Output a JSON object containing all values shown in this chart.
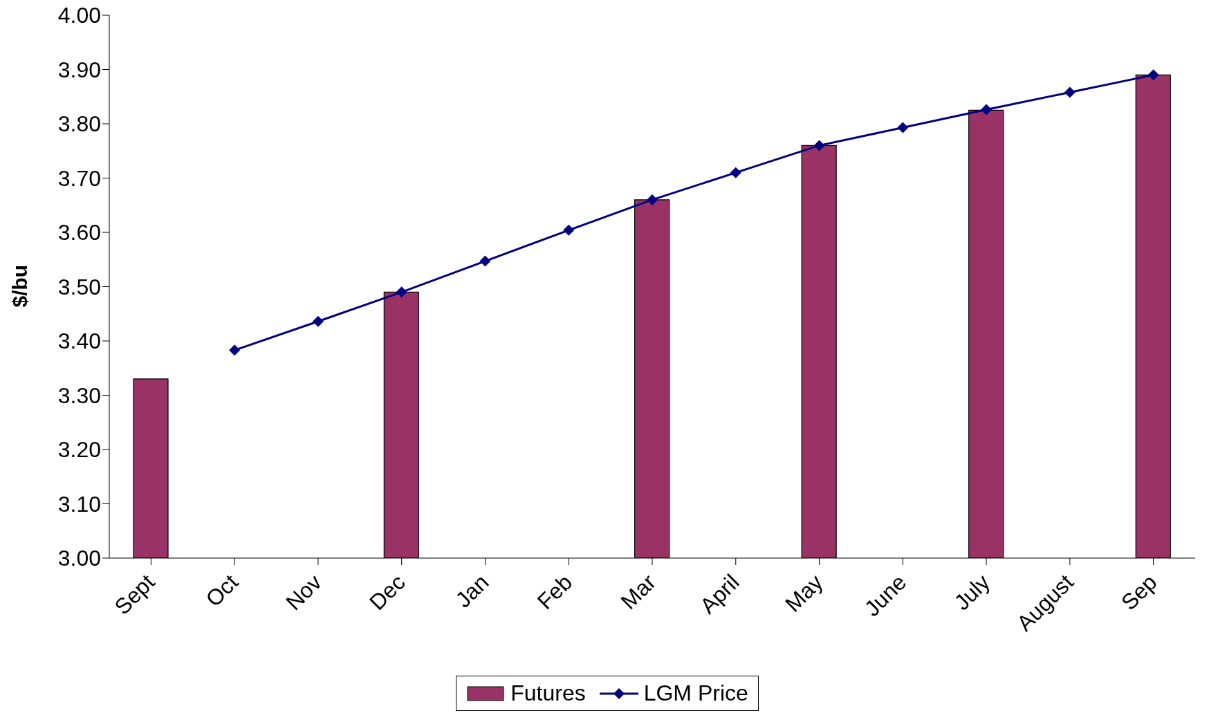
{
  "chart_data": {
    "type": "bar",
    "ylabel": "$/bu",
    "categories": [
      "Sept",
      "Oct",
      "Nov",
      "Dec",
      "Jan",
      "Feb",
      "Mar",
      "April",
      "May",
      "June",
      "July",
      "August",
      "Sep"
    ],
    "series": [
      {
        "name": "Futures",
        "color": "#993366",
        "values": [
          3.33,
          null,
          null,
          3.49,
          null,
          null,
          3.66,
          null,
          3.76,
          null,
          3.825,
          null,
          3.89
        ]
      },
      {
        "name": "LGM Price",
        "type": "line",
        "color": "#000080",
        "marker": "diamond",
        "values": [
          null,
          3.383,
          3.436,
          3.49,
          3.547,
          3.604,
          3.66,
          3.71,
          3.76,
          3.793,
          3.826,
          3.858,
          3.89
        ]
      }
    ],
    "ylim": [
      3,
      4
    ],
    "yticks": [
      {
        "value": 3,
        "label": "3.00"
      },
      {
        "value": 3.1,
        "label": "3.10"
      },
      {
        "value": 3.2,
        "label": "3.20"
      },
      {
        "value": 3.3,
        "label": "3.30"
      },
      {
        "value": 3.4,
        "label": "3.40"
      },
      {
        "value": 3.5,
        "label": "3.50"
      },
      {
        "value": 3.6,
        "label": "3.60"
      },
      {
        "value": 3.7,
        "label": "3.70"
      },
      {
        "value": 3.8,
        "label": "3.80"
      },
      {
        "value": 3.9,
        "label": "3.90"
      },
      {
        "value": 4,
        "label": "4.00"
      }
    ],
    "legend": "bottom"
  }
}
